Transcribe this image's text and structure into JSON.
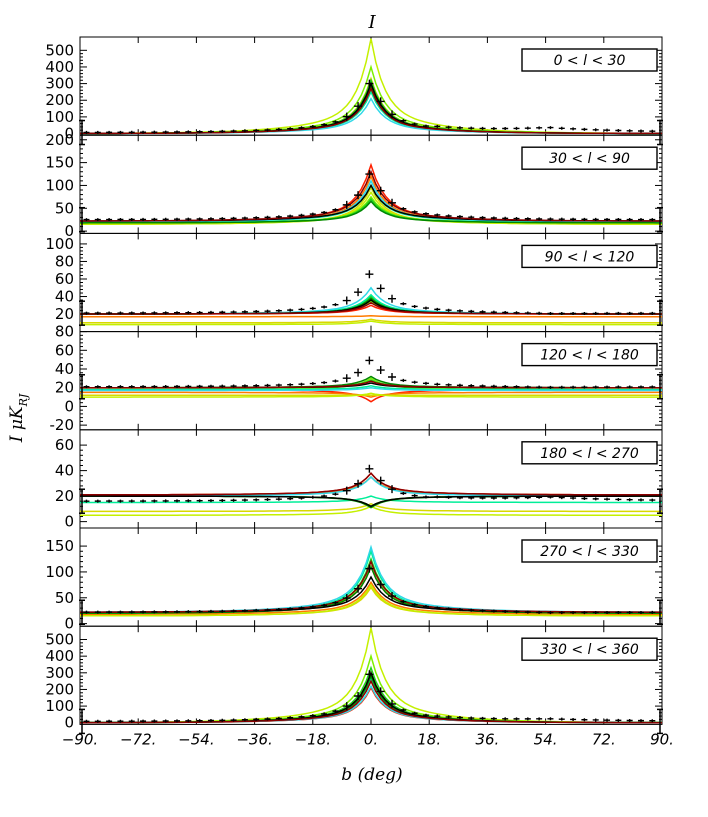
{
  "title": "I",
  "ylabel": "I  μK",
  "ylabel_sub": "RJ",
  "xlabel": "b (deg)",
  "x_ticks": [
    "−90.",
    "−72.",
    "−54.",
    "−36.",
    "−18.",
    "0.",
    "18.",
    "36.",
    "54.",
    "72.",
    "90."
  ],
  "chart_data": {
    "type": "line",
    "xlim": [
      -90,
      90
    ],
    "x_tick_values": [
      -90,
      -72,
      -54,
      -36,
      -18,
      0,
      18,
      36,
      54,
      72,
      90
    ],
    "series_colors": [
      "#ff2000",
      "#ff7a00",
      "#d8d800",
      "#c4f000",
      "#7cf000",
      "#20d020",
      "#00ee99",
      "#30d8e8",
      "#008800",
      "#000000",
      "#8b0000"
    ],
    "panels": [
      {
        "region": "0 < l < 30",
        "ylim": [
          -10,
          580
        ],
        "yticks": [
          0,
          100,
          200,
          300,
          400,
          500
        ],
        "data_peak": 330,
        "data_base": 6,
        "data_tail": 32,
        "peaks": [
          260,
          320,
          330,
          570,
          400,
          320,
          250,
          210,
          290,
          300,
          270
        ],
        "bases": [
          0,
          0,
          0,
          0,
          0,
          0,
          0,
          0,
          0,
          0,
          0
        ]
      },
      {
        "region": "30 < l < 90",
        "ylim": [
          -5,
          210
        ],
        "yticks": [
          0,
          50,
          100,
          150,
          200
        ],
        "data_peak": 135,
        "data_base": 25,
        "data_tail": 25,
        "peaks": [
          145,
          120,
          95,
          85,
          75,
          70,
          100,
          110,
          65,
          100,
          130
        ],
        "bases": [
          20,
          20,
          15,
          15,
          18,
          18,
          20,
          20,
          18,
          22,
          22
        ]
      },
      {
        "region": "90 < l < 120",
        "ylim": [
          0,
          112
        ],
        "yticks": [
          20,
          40,
          60,
          80,
          100
        ],
        "data_peak": 70,
        "data_base": 21,
        "data_tail": 20,
        "peaks": [
          30,
          18,
          14,
          12,
          35,
          40,
          42,
          50,
          38,
          36,
          33
        ],
        "bases": [
          20,
          17,
          10,
          8,
          20,
          20,
          20,
          20,
          20,
          20,
          20
        ]
      },
      {
        "region": "120 < l < 180",
        "ylim": [
          -25,
          80
        ],
        "yticks": [
          -20,
          0,
          20,
          40,
          60,
          80
        ],
        "data_peak": 52,
        "data_base": 21,
        "data_tail": 20,
        "peaks": [
          5,
          10,
          12,
          14,
          30,
          28,
          22,
          20,
          32,
          25,
          27
        ],
        "bases": [
          18,
          15,
          12,
          10,
          18,
          20,
          18,
          17,
          20,
          20,
          20
        ]
      },
      {
        "region": "180 < l < 270",
        "ylim": [
          -5,
          72
        ],
        "yticks": [
          0,
          20,
          40,
          60
        ],
        "data_peak": 44,
        "data_base": 16,
        "data_tail": 19,
        "peaks": [
          38,
          35,
          14,
          12,
          12,
          12,
          20,
          35,
          11,
          12,
          38
        ],
        "bases": [
          21,
          21,
          8,
          5,
          20,
          20,
          15,
          20,
          20,
          20,
          21
        ]
      },
      {
        "region": "270 < l < 330",
        "ylim": [
          -5,
          185
        ],
        "yticks": [
          0,
          50,
          100,
          150
        ],
        "data_peak": 115,
        "data_base": 22,
        "data_tail": 20,
        "peaks": [
          110,
          80,
          70,
          75,
          120,
          125,
          140,
          148,
          110,
          90,
          120
        ],
        "bases": [
          20,
          18,
          15,
          15,
          20,
          20,
          20,
          22,
          20,
          22,
          22
        ]
      },
      {
        "region": "330 < l < 360",
        "ylim": [
          -10,
          580
        ],
        "yticks": [
          0,
          100,
          200,
          300,
          400,
          500
        ],
        "data_peak": 320,
        "data_base": 8,
        "data_tail": 20,
        "peaks": [
          210,
          250,
          300,
          570,
          400,
          330,
          260,
          220,
          280,
          300,
          250
        ],
        "bases": [
          0,
          0,
          0,
          0,
          0,
          0,
          0,
          0,
          0,
          0,
          0
        ]
      }
    ]
  }
}
